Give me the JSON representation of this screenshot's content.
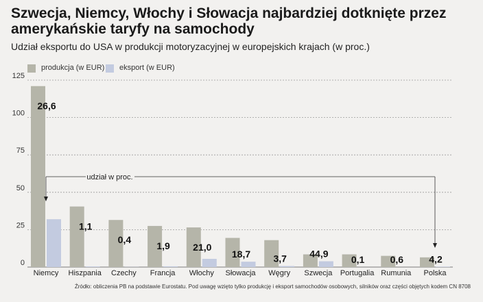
{
  "title": "Szwecja, Niemcy, Włochy i Słowacja najbardziej dotknięte przez amerykańskie taryfy na samochody",
  "subtitle": "Udział eksportu do USA w produkcji motoryzacyjnej w europejskich krajach (w proc.)",
  "source": "Źródło: obliczenia PB na podstawie Eurostatu. Pod uwagę wzięto tylko produkcję i eksport samochodów osobowych, silników oraz części objętych kodem CN 8708",
  "annotation_label": "udział w proc.",
  "colors": {
    "production": "#b5b5a9",
    "export": "#c3cbe0",
    "background": "#f2f1ef",
    "grid": "#9a9a9a"
  },
  "chart_data": {
    "type": "bar",
    "categories": [
      "Niemcy",
      "Hiszpania",
      "Czechy",
      "Francja",
      "Włochy",
      "Słowacja",
      "Węgry",
      "Szwecja",
      "Portugalia",
      "Rumunia",
      "Polska"
    ],
    "series": [
      {
        "name": "produkcja (w EUR)",
        "values": [
          121,
          40.5,
          31.5,
          27.5,
          26.5,
          19.5,
          18,
          8.5,
          8.5,
          7.5,
          6.5
        ]
      },
      {
        "name": "eksport (w EUR)",
        "values": [
          32,
          0.4,
          0.1,
          0.5,
          5.5,
          3.6,
          0.7,
          3.9,
          0,
          0,
          0.3
        ]
      }
    ],
    "share_labels": [
      "26,6",
      "1,1",
      "0,4",
      "1,9",
      "21,0",
      "18,7",
      "3,7",
      "44,9",
      "0,1",
      "0,6",
      "4,2"
    ],
    "yticks": [
      0,
      25,
      50,
      75,
      100,
      125
    ],
    "ylim": [
      0,
      125
    ],
    "grid": true,
    "legend_position": "top-left"
  }
}
